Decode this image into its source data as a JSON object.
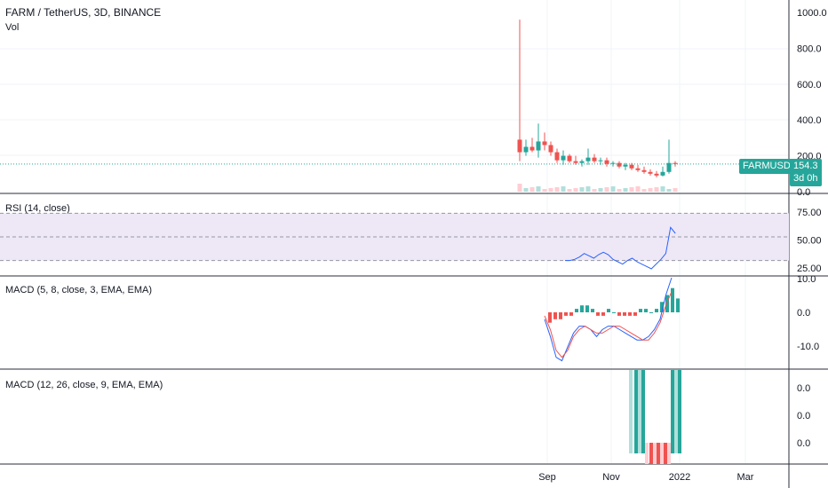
{
  "colors": {
    "up": "#26a69a",
    "down": "#ef5350",
    "up_light": "#b2dfdb",
    "down_light": "#ffcdd2",
    "rsi_line": "#2962ff",
    "rsi_band": "#ede7f6",
    "macd_line": "#2962ff",
    "signal_line": "#ef5350",
    "grid": "#f0f3fa",
    "border": "#2a2e39"
  },
  "legend": {
    "symbol": "FARM / TetherUS, 3D, BINANCE",
    "vol": "Vol",
    "rsi": "RSI (14, close)",
    "macd1": "MACD (5, 8, close, 3, EMA, EMA)",
    "macd2": "MACD (12, 26, close, 9, EMA, EMA)"
  },
  "last_price": {
    "ticker": "FARMUSDT",
    "value": "154.3",
    "countdown": "3d 0h"
  },
  "x_labels": [
    "Sep",
    "Nov",
    "2022",
    "Mar"
  ],
  "chart_data": [
    {
      "type": "candlestick",
      "title": "FARM / TetherUS, 3D, BINANCE",
      "y_ticks": [
        "1000.0",
        "800.0",
        "600.0",
        "400.0",
        "200.0",
        "0.0"
      ],
      "ylim": [
        0,
        1000
      ],
      "last": 154.3,
      "candles": [
        [
          290,
          960,
          170,
          220
        ],
        [
          220,
          290,
          200,
          250
        ],
        [
          250,
          300,
          220,
          230
        ],
        [
          230,
          380,
          190,
          280
        ],
        [
          280,
          330,
          230,
          260
        ],
        [
          260,
          280,
          200,
          220
        ],
        [
          220,
          240,
          160,
          175
        ],
        [
          175,
          230,
          150,
          200
        ],
        [
          200,
          210,
          160,
          170
        ],
        [
          170,
          200,
          150,
          160
        ],
        [
          160,
          180,
          140,
          170
        ],
        [
          170,
          240,
          150,
          190
        ],
        [
          190,
          210,
          160,
          170
        ],
        [
          170,
          190,
          150,
          175
        ],
        [
          175,
          190,
          140,
          155
        ],
        [
          155,
          170,
          140,
          160
        ],
        [
          160,
          170,
          130,
          140
        ],
        [
          140,
          160,
          120,
          150
        ],
        [
          150,
          160,
          120,
          130
        ],
        [
          130,
          150,
          110,
          120
        ],
        [
          120,
          140,
          100,
          110
        ],
        [
          110,
          125,
          90,
          100
        ],
        [
          100,
          115,
          80,
          90
        ],
        [
          90,
          140,
          85,
          110
        ],
        [
          110,
          290,
          100,
          160
        ],
        [
          160,
          170,
          140,
          154.3
        ]
      ],
      "volume_note": "Vol"
    },
    {
      "type": "line",
      "title": "RSI (14, close)",
      "y_ticks": [
        "75.00",
        "50.00",
        "25.00"
      ],
      "ylim": [
        17,
        86
      ],
      "bands": [
        70,
        50,
        30
      ],
      "values": [
        30,
        30,
        31,
        33,
        36,
        34,
        32,
        35,
        37,
        35,
        31,
        29,
        27,
        30,
        32,
        29,
        27,
        25,
        23,
        27,
        31,
        36,
        58,
        53
      ]
    },
    {
      "type": "bar",
      "title": "MACD (5, 8, close, 3, EMA, EMA)",
      "y_ticks": [
        "10.0",
        "0.0",
        "-10.0"
      ],
      "ylim": [
        -16,
        10
      ],
      "histogram": [
        -3,
        -2,
        -2,
        -1,
        -1,
        1,
        2,
        2,
        1,
        -1,
        -1,
        1,
        0,
        -1,
        -1,
        -1,
        -1,
        1,
        1,
        0,
        1,
        3,
        5,
        7,
        4
      ],
      "macd": [
        -2,
        -7,
        -13,
        -14,
        -10,
        -6,
        -4,
        -4,
        -5,
        -7,
        -5,
        -4,
        -4,
        -5,
        -6,
        -7,
        -8,
        -8,
        -7,
        -5,
        -2,
        5,
        10
      ],
      "signal": [
        -1,
        -5,
        -11,
        -13,
        -11,
        -7,
        -5,
        -4,
        -5,
        -6,
        -6,
        -5,
        -4,
        -4,
        -5,
        -6,
        -7,
        -8,
        -8,
        -6,
        -3,
        2,
        6
      ]
    },
    {
      "type": "bar",
      "title": "MACD (12, 26, close, 9, EMA, EMA)",
      "y_ticks": [
        "0.0",
        "0.0",
        "0.0"
      ],
      "ylim": [
        -1,
        1
      ],
      "histogram": [
        0.8,
        0.8,
        0.8,
        0.8,
        -0.8,
        -0.8,
        -0.8,
        -0.8,
        -0.8,
        -0.8,
        -0.8,
        0.8,
        0.8,
        0.8
      ]
    }
  ]
}
